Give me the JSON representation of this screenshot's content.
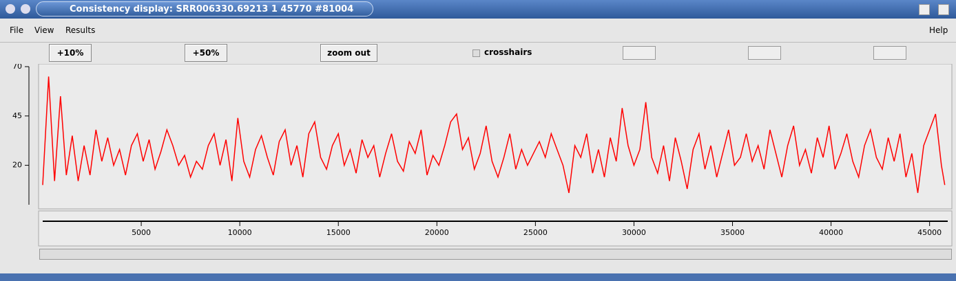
{
  "window": {
    "title": "Consistency display: SRR006330.69213 1 45770 #81004"
  },
  "menu": [
    "File",
    "View",
    "Results"
  ],
  "help_menu": "Help",
  "toolbar": {
    "buttons": [
      "+10%",
      "+50%",
      "zoom out"
    ],
    "checkbox": "crosshairs"
  },
  "chart_data": {
    "type": "line",
    "color": "#ff0000",
    "x": [
      0,
      300,
      600,
      900,
      1200,
      1500,
      1800,
      2100,
      2400,
      2700,
      3000,
      3300,
      3600,
      3900,
      4200,
      4500,
      4800,
      5100,
      5400,
      5700,
      6000,
      6300,
      6600,
      6900,
      7200,
      7500,
      7800,
      8100,
      8400,
      8700,
      9000,
      9300,
      9600,
      9900,
      10200,
      10500,
      10800,
      11100,
      11400,
      11700,
      12000,
      12300,
      12600,
      12900,
      13200,
      13500,
      13800,
      14100,
      14400,
      14700,
      15000,
      15300,
      15600,
      15900,
      16200,
      16500,
      16800,
      17100,
      17400,
      17700,
      18000,
      18300,
      18600,
      18900,
      19200,
      19500,
      19800,
      20100,
      20400,
      20700,
      21000,
      21300,
      21600,
      21900,
      22200,
      22500,
      22800,
      23100,
      23400,
      23700,
      24000,
      24300,
      24600,
      24900,
      25200,
      25500,
      25800,
      26100,
      26400,
      26700,
      27000,
      27300,
      27600,
      27900,
      28200,
      28500,
      28800,
      29100,
      29400,
      29700,
      30000,
      30300,
      30600,
      30900,
      31200,
      31500,
      31800,
      32100,
      32400,
      32700,
      33000,
      33300,
      33600,
      33900,
      34200,
      34500,
      34800,
      35100,
      35400,
      35700,
      36000,
      36300,
      36600,
      36900,
      37200,
      37500,
      37800,
      38100,
      38400,
      38700,
      39000,
      39300,
      39600,
      39900,
      40200,
      40500,
      40800,
      41100,
      41400,
      41700,
      42000,
      42300,
      42600,
      42900,
      43200,
      43500,
      43800,
      44100,
      44400,
      44700,
      45000,
      45300,
      45600,
      45770
    ],
    "values": [
      10,
      65,
      12,
      55,
      15,
      35,
      12,
      30,
      15,
      38,
      22,
      34,
      20,
      28,
      15,
      30,
      36,
      22,
      33,
      18,
      27,
      38,
      30,
      20,
      25,
      14,
      22,
      18,
      30,
      36,
      20,
      33,
      12,
      44,
      22,
      14,
      28,
      35,
      24,
      15,
      32,
      38,
      20,
      30,
      14,
      36,
      42,
      24,
      18,
      30,
      36,
      20,
      28,
      16,
      33,
      24,
      30,
      14,
      26,
      36,
      22,
      17,
      32,
      26,
      38,
      15,
      25,
      20,
      30,
      42,
      46,
      28,
      34,
      18,
      26,
      40,
      22,
      14,
      24,
      36,
      18,
      28,
      20,
      26,
      32,
      24,
      36,
      28,
      20,
      6,
      30,
      24,
      36,
      16,
      28,
      14,
      34,
      22,
      49,
      30,
      20,
      28,
      52,
      24,
      16,
      30,
      12,
      34,
      22,
      8,
      28,
      36,
      18,
      30,
      14,
      26,
      38,
      20,
      24,
      36,
      22,
      30,
      18,
      38,
      26,
      14,
      30,
      40,
      20,
      28,
      16,
      34,
      24,
      40,
      18,
      26,
      36,
      22,
      14,
      30,
      38,
      24,
      18,
      34,
      22,
      36,
      14,
      26,
      6,
      30,
      38,
      46,
      20,
      10
    ],
    "xlim": [
      0,
      45770
    ],
    "ylim": [
      0,
      70
    ],
    "yticks": [
      20,
      45,
      70
    ],
    "xticks": [
      5000,
      10000,
      15000,
      20000,
      25000,
      30000,
      35000,
      40000,
      45000
    ]
  }
}
